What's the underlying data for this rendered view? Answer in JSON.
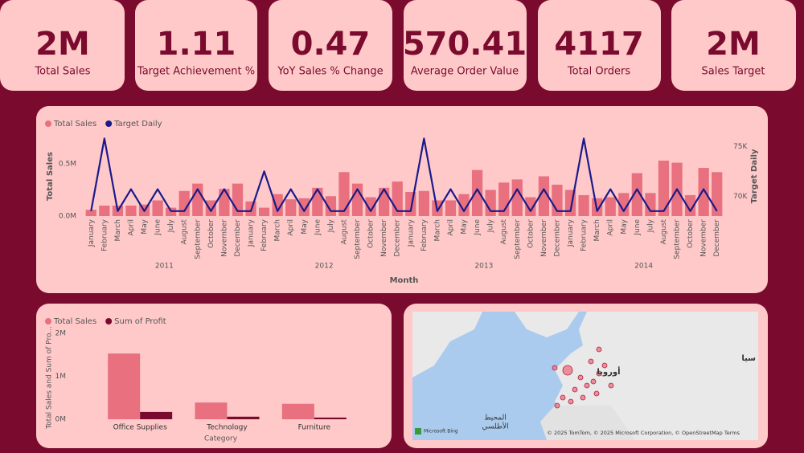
{
  "kpis": [
    {
      "value": "2M",
      "label": "Total Sales"
    },
    {
      "value": "1.11",
      "label": "Target Achievement %"
    },
    {
      "value": "0.47",
      "label": "YoY Sales % Change"
    },
    {
      "value": "570.41",
      "label": "Average Order Value"
    },
    {
      "value": "4117",
      "label": "Total Orders"
    },
    {
      "value": "2M",
      "label": "Sales Target"
    }
  ],
  "chart_data": [
    {
      "type": "combo",
      "x_label": "Month",
      "y_label": "Total Sales",
      "y2_label": "Target Daily",
      "categories": [
        "January",
        "February",
        "March",
        "April",
        "May",
        "June",
        "July",
        "August",
        "September",
        "October",
        "November",
        "December",
        "January",
        "February",
        "March",
        "April",
        "May",
        "June",
        "July",
        "August",
        "September",
        "October",
        "November",
        "December",
        "January",
        "February",
        "March",
        "April",
        "May",
        "June",
        "July",
        "August",
        "September",
        "October",
        "November",
        "December",
        "January",
        "February",
        "March",
        "April",
        "May",
        "June",
        "July",
        "August",
        "September",
        "October",
        "November",
        "December"
      ],
      "years": [
        "2011",
        "2012",
        "2013",
        "2014"
      ],
      "series": [
        {
          "name": "Total Sales",
          "type": "bar",
          "color": "#e8707f",
          "values": [
            60000,
            100000,
            100000,
            100000,
            110000,
            150000,
            80000,
            240000,
            310000,
            150000,
            260000,
            310000,
            140000,
            80000,
            210000,
            160000,
            170000,
            270000,
            190000,
            420000,
            310000,
            180000,
            270000,
            330000,
            230000,
            240000,
            150000,
            150000,
            210000,
            440000,
            250000,
            320000,
            350000,
            180000,
            380000,
            300000,
            250000,
            200000,
            170000,
            180000,
            220000,
            410000,
            220000,
            530000,
            510000,
            200000,
            460000,
            420000
          ]
        },
        {
          "name": "Target Daily",
          "type": "line",
          "axis": "y2",
          "color": "#1a1a8c",
          "values": [
            68500,
            75800,
            68500,
            70700,
            68500,
            70700,
            68500,
            68500,
            70700,
            68500,
            70700,
            68500,
            68500,
            72500,
            68500,
            70700,
            68500,
            70700,
            68500,
            68500,
            70700,
            68500,
            70700,
            68500,
            68500,
            75800,
            68500,
            70700,
            68500,
            70700,
            68500,
            68500,
            70700,
            68500,
            70700,
            68500,
            68500,
            75800,
            68500,
            70700,
            68500,
            70700,
            68500,
            68500,
            70700,
            68500,
            70700,
            68500
          ]
        }
      ],
      "ylim": [
        0,
        760000
      ],
      "yticks": [
        {
          "value": 0,
          "label": "0.0M"
        },
        {
          "value": 500000,
          "label": "0.5M"
        }
      ],
      "y2lim": [
        68000,
        76000
      ],
      "y2ticks": [
        {
          "value": 70000,
          "label": "70K"
        },
        {
          "value": 75000,
          "label": "75K"
        }
      ],
      "grid": false,
      "legend": "top-left"
    },
    {
      "type": "bar",
      "x_label": "Category",
      "y_label": "Total Sales and Sum of Pro...",
      "categories": [
        "Office Supplies",
        "Technology",
        "Furniture"
      ],
      "series": [
        {
          "name": "Total Sales",
          "color": "#e8707f",
          "values": [
            1530000,
            390000,
            360000
          ]
        },
        {
          "name": "Sum of Profit",
          "color": "#7a0b2e",
          "values": [
            170000,
            60000,
            40000
          ]
        }
      ],
      "ylim": [
        0,
        2000000
      ],
      "yticks": [
        {
          "value": 0,
          "label": "0M"
        },
        {
          "value": 1000000,
          "label": "1M"
        },
        {
          "value": 2000000,
          "label": "2M"
        }
      ],
      "grid": false,
      "legend": "top-left"
    }
  ],
  "map": {
    "ocean_label": [
      "المحيط",
      "الأطلسي"
    ],
    "continent_label": "أوروبا",
    "edge_label": "سيا",
    "logo": "Microsoft Bing",
    "attribution": "© 2025 TomTom, © 2025 Microsoft Corporation, © OpenStreetMap Terms"
  }
}
